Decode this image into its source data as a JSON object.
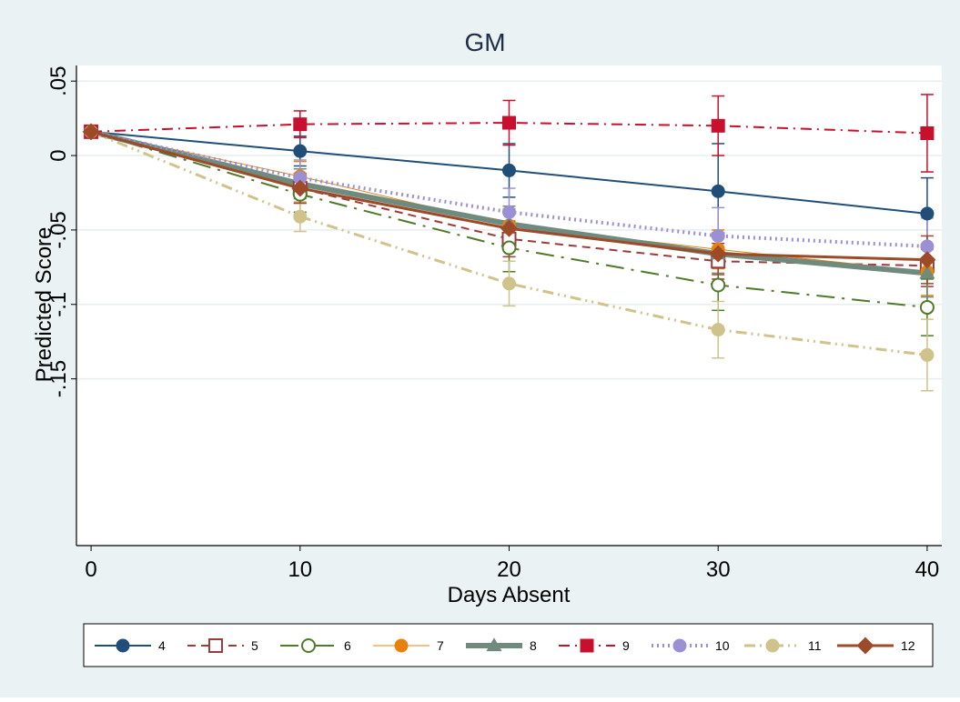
{
  "chart_data": {
    "type": "line",
    "title": "GM",
    "xlabel": "Days Absent",
    "ylabel": "Predicted Score",
    "x": [
      0,
      10,
      20,
      30,
      40
    ],
    "x_ticks": [
      "0",
      "10",
      "20",
      "30",
      "40"
    ],
    "y_ticks": [
      {
        "value": 0.05,
        "label": ".05"
      },
      {
        "value": 0,
        "label": "0"
      },
      {
        "value": -0.05,
        "label": "-.05"
      },
      {
        "value": -0.1,
        "label": "-.1"
      },
      {
        "value": -0.15,
        "label": "-.15"
      }
    ],
    "xlim": [
      -0.7,
      40.7
    ],
    "ylim": [
      -0.262,
      0.0605
    ],
    "grid": true,
    "legend_position": "bottom",
    "series": [
      {
        "name": "4",
        "color": "#1f4e79",
        "marker": "circle-filled",
        "dash": "solid",
        "width": 2,
        "values": [
          0.016,
          0.003,
          -0.01,
          -0.024,
          -0.039
        ],
        "ci_low": [
          0.016,
          -0.007,
          -0.028,
          -0.052,
          -0.062
        ],
        "ci_high": [
          0.016,
          0.013,
          0.008,
          0.008,
          -0.015
        ]
      },
      {
        "name": "5",
        "color": "#9b3b3b",
        "marker": "square-hollow",
        "dash": "dash",
        "width": 2,
        "values": [
          0.016,
          -0.022,
          -0.056,
          -0.071,
          -0.074
        ],
        "ci_low": [
          0.016,
          -0.032,
          -0.068,
          -0.083,
          -0.088
        ],
        "ci_high": [
          0.016,
          -0.012,
          -0.044,
          -0.059,
          -0.06
        ]
      },
      {
        "name": "6",
        "color": "#4f7a28",
        "marker": "circle-hollow",
        "dash": "longdashdot",
        "width": 2,
        "values": [
          0.016,
          -0.026,
          -0.062,
          -0.087,
          -0.102
        ],
        "ci_low": [
          0.016,
          -0.038,
          -0.078,
          -0.104,
          -0.121
        ],
        "ci_high": [
          0.016,
          -0.014,
          -0.046,
          -0.07,
          -0.083
        ]
      },
      {
        "name": "7",
        "color": "#e8820c",
        "marker": "circle-filled",
        "dash": "solid",
        "width": 1,
        "values": [
          0.016,
          -0.014,
          -0.047,
          -0.063,
          -0.078
        ],
        "ci_low": [
          0.016,
          -0.024,
          -0.06,
          -0.076,
          -0.094
        ],
        "ci_high": [
          0.016,
          -0.004,
          -0.034,
          -0.05,
          -0.062
        ]
      },
      {
        "name": "8",
        "color": "#708a7e",
        "marker": "triangle-filled",
        "dash": "solid",
        "width": 6,
        "values": [
          0.016,
          -0.019,
          -0.046,
          -0.066,
          -0.079
        ],
        "ci_low": [
          0.016,
          -0.029,
          -0.058,
          -0.079,
          -0.095
        ],
        "ci_high": [
          0.016,
          -0.009,
          -0.034,
          -0.053,
          -0.063
        ]
      },
      {
        "name": "9",
        "color": "#c8102e",
        "marker": "square-filled",
        "dash": "dashdot",
        "width": 2,
        "values": [
          0.016,
          0.021,
          0.022,
          0.02,
          0.015
        ],
        "ci_low": [
          0.016,
          0.012,
          0.007,
          0.0,
          -0.011
        ],
        "ci_high": [
          0.016,
          0.03,
          0.037,
          0.04,
          0.041
        ]
      },
      {
        "name": "10",
        "color": "#9b90d4",
        "marker": "circle-filled",
        "dash": "dot",
        "width": 4,
        "values": [
          0.016,
          -0.015,
          -0.038,
          -0.054,
          -0.061
        ],
        "ci_low": [
          0.016,
          -0.027,
          -0.054,
          -0.073,
          -0.08
        ],
        "ci_high": [
          0.016,
          -0.003,
          -0.022,
          -0.035,
          -0.042
        ]
      },
      {
        "name": "11",
        "color": "#cfc28a",
        "marker": "circle-filled",
        "dash": "dashdotdot",
        "width": 3,
        "values": [
          0.016,
          -0.041,
          -0.086,
          -0.117,
          -0.134
        ],
        "ci_low": [
          0.016,
          -0.051,
          -0.101,
          -0.136,
          -0.158
        ],
        "ci_high": [
          0.016,
          -0.031,
          -0.071,
          -0.098,
          -0.11
        ]
      },
      {
        "name": "12",
        "color": "#9c4a28",
        "marker": "diamond-filled",
        "dash": "solid",
        "width": 3,
        "values": [
          0.016,
          -0.022,
          -0.049,
          -0.066,
          -0.07
        ],
        "ci_low": [
          0.016,
          -0.032,
          -0.062,
          -0.08,
          -0.086
        ],
        "ci_high": [
          0.016,
          -0.012,
          -0.036,
          -0.052,
          -0.054
        ]
      }
    ]
  }
}
